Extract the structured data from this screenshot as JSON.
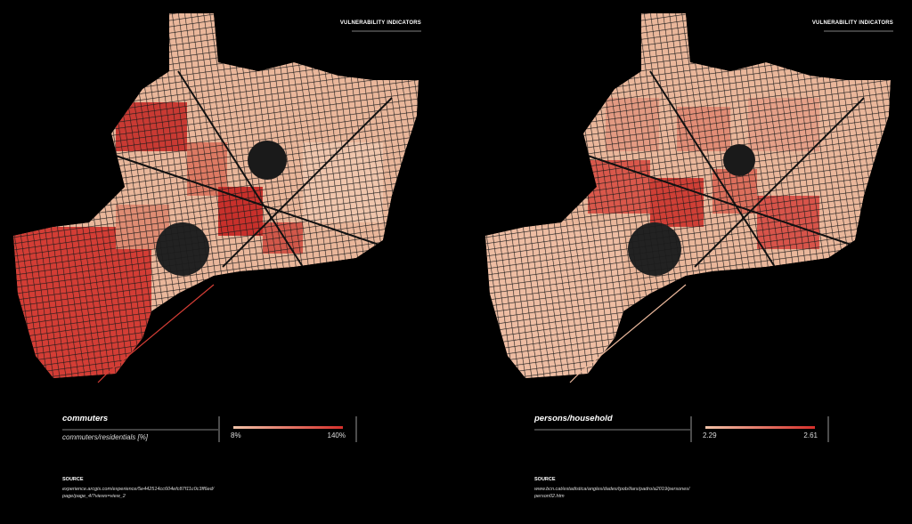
{
  "panels": [
    {
      "header": "VULNERABILITY INDICATORS",
      "legend": {
        "title": "commuters",
        "subtitle": "commuters/residentials [%]",
        "min": "8%",
        "max": "140%"
      },
      "source": {
        "label": "SOURCE",
        "lines": [
          "experience.arcgis.com/experience/5e442514cc604efc87f11c0c3ff6ed/",
          "page/page_4/?views=view_2"
        ]
      }
    },
    {
      "header": "VULNERABILITY INDICATORS",
      "legend": {
        "title": "persons/household",
        "subtitle": "",
        "min": "2.29",
        "max": "2.61"
      },
      "source": {
        "label": "SOURCE",
        "lines": [
          "www.bcn.cat/estadistica/angles/dades/tpob/ilars/padro/a2019/persones/",
          "person02.htm"
        ]
      }
    }
  ]
}
